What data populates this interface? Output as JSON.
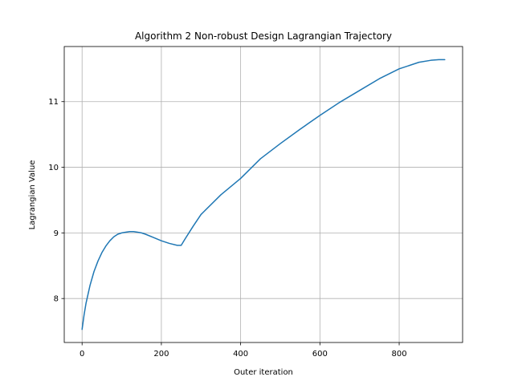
{
  "chart_data": {
    "type": "line",
    "title": "Algorithm 2 Non-robust Design Lagrangian Trajectory",
    "xlabel": "Outer iteration",
    "ylabel": "Lagrangian Value",
    "xlim": [
      -45,
      960
    ],
    "ylim": [
      7.33,
      11.84
    ],
    "xticks": [
      0,
      200,
      400,
      600,
      800
    ],
    "xtick_labels": [
      "0",
      "200",
      "400",
      "600",
      "800"
    ],
    "yticks": [
      8,
      9,
      10,
      11
    ],
    "ytick_labels": [
      "8",
      "9",
      "10",
      "11"
    ],
    "grid": true,
    "legend": "none",
    "series": [
      {
        "color": "#1f77b4",
        "x": [
          0,
          5,
          10,
          20,
          30,
          40,
          50,
          60,
          70,
          80,
          90,
          100,
          110,
          120,
          130,
          140,
          150,
          160,
          180,
          200,
          220,
          240,
          250,
          260,
          280,
          300,
          350,
          400,
          450,
          500,
          550,
          600,
          650,
          700,
          750,
          800,
          850,
          880,
          900,
          915
        ],
        "y": [
          7.53,
          7.75,
          7.93,
          8.2,
          8.41,
          8.57,
          8.7,
          8.8,
          8.88,
          8.94,
          8.98,
          9.0,
          9.01,
          9.02,
          9.02,
          9.01,
          9.0,
          8.98,
          8.93,
          8.88,
          8.84,
          8.81,
          8.81,
          8.91,
          9.1,
          9.28,
          9.58,
          9.83,
          10.13,
          10.36,
          10.58,
          10.79,
          10.99,
          11.17,
          11.35,
          11.5,
          11.6,
          11.63,
          11.64,
          11.64
        ]
      }
    ]
  }
}
